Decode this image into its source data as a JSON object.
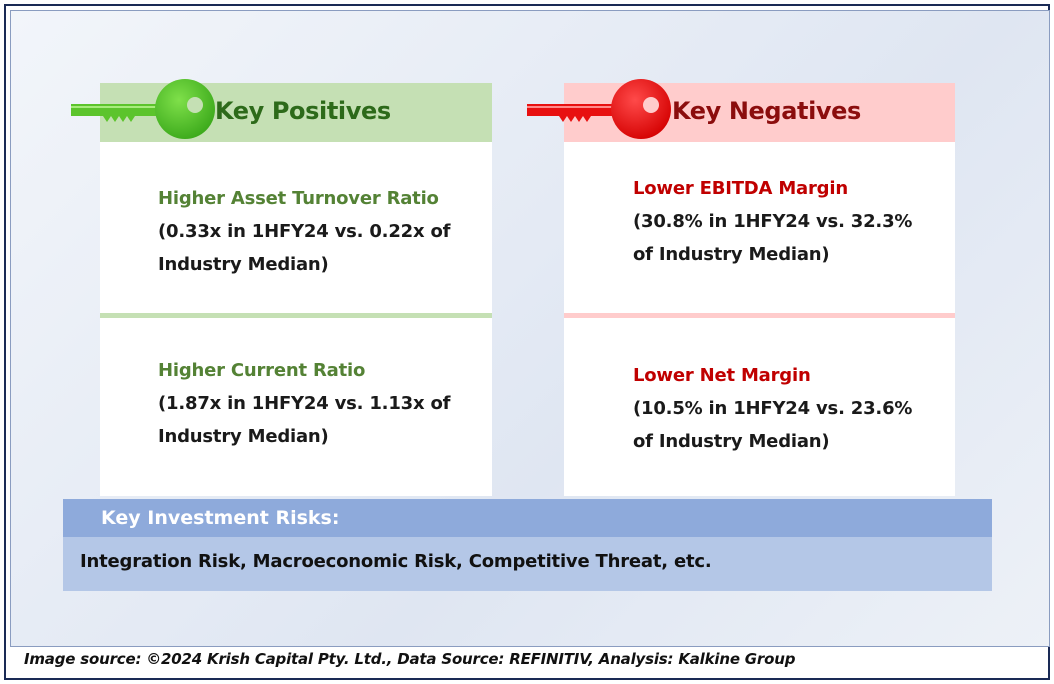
{
  "positives": {
    "title": "Key Positives",
    "color": "#548235",
    "items": [
      {
        "title": "Higher Asset Turnover Ratio",
        "line1": "(0.33x in 1HFY24 vs. 0.22x of",
        "line2": "Industry Median)"
      },
      {
        "title": "Higher Current Ratio",
        "line1": "(1.87x in 1HFY24 vs. 1.13x of",
        "line2": "Industry Median)"
      }
    ]
  },
  "negatives": {
    "title": "Key Negatives",
    "color": "#c00000",
    "items": [
      {
        "title": "Lower EBITDA Margin",
        "line1": "(30.8% in 1HFY24 vs. 32.3%",
        "line2": "of Industry Median)"
      },
      {
        "title": "Lower Net Margin",
        "line1": "(10.5% in 1HFY24 vs. 23.6%",
        "line2": "of Industry Median)"
      }
    ]
  },
  "risks": {
    "header": "Key Investment Risks:",
    "body": "Integration Risk, Macroeconomic Risk, Competitive Threat, etc."
  },
  "source": "Image source: ©2024 Krish Capital Pty. Ltd., Data Source: REFINITIV, Analysis: Kalkine Group",
  "icons": {
    "positives_key": "green-key-icon",
    "negatives_key": "red-key-icon"
  }
}
